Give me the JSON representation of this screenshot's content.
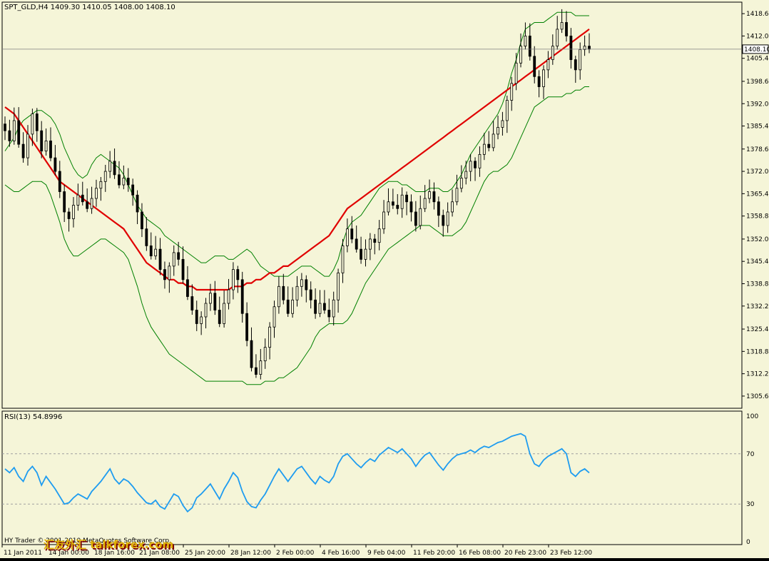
{
  "colors": {
    "background": "#f5f5d8",
    "frame": "#000000",
    "candle": "#000000",
    "ma": "#e00000",
    "bands": "#008000",
    "rsi": "#1e9cf0",
    "level_line": "#a0a0a0",
    "price_marker_bg": "#ffffff",
    "watermark_primary": "#e0b000",
    "watermark_shadow": "#7a0000"
  },
  "main_panel": {
    "header": "SPT_GLD,H4  1409.30 1410.05 1408.00 1408.10",
    "current_price_label": "1408.10"
  },
  "rsi_panel": {
    "header": "RSI(13) 54.8996"
  },
  "footer": {
    "copyright": "HY Trader © 2001-2010 MetaQuotes Software Corp.",
    "watermark": "汇友外汇 talkforex.com"
  },
  "chart_data": [
    {
      "type": "candlestick",
      "title": "SPT_GLD,H4",
      "ylim": [
        1302.0,
        1422.0
      ],
      "y_ticks": [
        "1418.60",
        "1412.00",
        "1405.40",
        "1398.60",
        "1392.00",
        "1385.40",
        "1378.60",
        "1372.00",
        "1365.40",
        "1358.80",
        "1352.00",
        "1345.40",
        "1338.80",
        "1332.20",
        "1325.40",
        "1318.80",
        "1312.20",
        "1305.60"
      ],
      "x_ticks": [
        "11 Jan 2011",
        "14 Jan 00:00",
        "18 Jan 16:00",
        "21 Jan 08:00",
        "25 Jan 20:00",
        "28 Jan 12:00",
        "2 Feb 00:00",
        "4 Feb 16:00",
        "9 Feb 04:00",
        "11 Feb 20:00",
        "16 Feb 08:00",
        "20 Feb 23:00",
        "23 Feb 12:00"
      ],
      "ohlc_last": {
        "open": 1409.3,
        "high": 1410.05,
        "low": 1408.0,
        "close": 1408.1
      },
      "close": [
        1384,
        1381,
        1387,
        1380,
        1376,
        1383,
        1389,
        1384,
        1378,
        1381,
        1376,
        1372,
        1366,
        1360,
        1358,
        1362,
        1365,
        1363,
        1361,
        1364,
        1367,
        1369,
        1372,
        1375,
        1371,
        1368,
        1370,
        1368,
        1365,
        1360,
        1355,
        1350,
        1347,
        1349,
        1343,
        1340,
        1344,
        1348,
        1346,
        1340,
        1335,
        1331,
        1327,
        1329,
        1333,
        1336,
        1331,
        1327,
        1333,
        1337,
        1343,
        1340,
        1330,
        1322,
        1314,
        1312,
        1316,
        1320,
        1326,
        1332,
        1338,
        1334,
        1330,
        1334,
        1338,
        1340,
        1337,
        1334,
        1330,
        1333,
        1331,
        1329,
        1334,
        1342,
        1350,
        1355,
        1352,
        1349,
        1346,
        1349,
        1352,
        1351,
        1355,
        1360,
        1363,
        1362,
        1361,
        1365,
        1363,
        1360,
        1356,
        1361,
        1364,
        1366,
        1363,
        1359,
        1356,
        1360,
        1363,
        1367,
        1370,
        1372,
        1375,
        1373,
        1377,
        1380,
        1379,
        1383,
        1385,
        1387,
        1393,
        1398,
        1404,
        1409,
        1412,
        1406,
        1400,
        1397,
        1402,
        1405,
        1409,
        1414,
        1416,
        1412,
        1405,
        1402,
        1408,
        1409,
        1408.1
      ],
      "bands_upper": [
        1378,
        1380,
        1382,
        1385,
        1387,
        1388,
        1389,
        1390,
        1390,
        1389,
        1388,
        1386,
        1383,
        1379,
        1376,
        1373,
        1371,
        1370,
        1371,
        1374,
        1376,
        1377,
        1376,
        1375,
        1374,
        1373,
        1371,
        1368,
        1365,
        1362,
        1360,
        1358,
        1357,
        1356,
        1355,
        1353,
        1352,
        1351,
        1350,
        1349,
        1348,
        1347,
        1346,
        1345,
        1345,
        1346,
        1347,
        1347,
        1347,
        1346,
        1346,
        1347,
        1348,
        1349,
        1348,
        1346,
        1344,
        1343,
        1342,
        1341,
        1341,
        1341,
        1341,
        1342,
        1343,
        1344,
        1344,
        1344,
        1343,
        1342,
        1341,
        1341,
        1343,
        1346,
        1351,
        1355,
        1357,
        1358,
        1359,
        1361,
        1363,
        1365,
        1367,
        1368,
        1369,
        1369,
        1369,
        1368,
        1368,
        1367,
        1366,
        1366,
        1366,
        1367,
        1367,
        1367,
        1366,
        1366,
        1367,
        1369,
        1371,
        1374,
        1377,
        1379,
        1381,
        1383,
        1385,
        1387,
        1389,
        1392,
        1396,
        1401,
        1405,
        1410,
        1414,
        1415,
        1416,
        1416,
        1416,
        1417,
        1418,
        1419,
        1419,
        1419,
        1419,
        1418,
        1418,
        1418,
        1418
      ],
      "bands_lower": [
        1368,
        1367,
        1366,
        1366,
        1367,
        1368,
        1369,
        1369,
        1369,
        1368,
        1365,
        1361,
        1357,
        1352,
        1349,
        1347,
        1347,
        1348,
        1349,
        1350,
        1351,
        1352,
        1352,
        1351,
        1350,
        1349,
        1348,
        1346,
        1342,
        1338,
        1333,
        1329,
        1326,
        1324,
        1322,
        1320,
        1318,
        1317,
        1316,
        1315,
        1314,
        1313,
        1312,
        1311,
        1310,
        1310,
        1310,
        1310,
        1310,
        1310,
        1310,
        1310,
        1310,
        1309,
        1309,
        1309,
        1309,
        1310,
        1310,
        1310,
        1311,
        1311,
        1312,
        1313,
        1314,
        1316,
        1318,
        1320,
        1323,
        1325,
        1326,
        1327,
        1327,
        1327,
        1327,
        1328,
        1330,
        1333,
        1336,
        1339,
        1341,
        1343,
        1345,
        1347,
        1349,
        1350,
        1351,
        1352,
        1353,
        1354,
        1355,
        1356,
        1356,
        1356,
        1355,
        1354,
        1353,
        1353,
        1353,
        1354,
        1355,
        1357,
        1360,
        1363,
        1366,
        1369,
        1371,
        1372,
        1372,
        1373,
        1374,
        1376,
        1379,
        1382,
        1385,
        1388,
        1391,
        1392,
        1393,
        1394,
        1394,
        1394,
        1394,
        1395,
        1395,
        1396,
        1396,
        1397,
        1397
      ],
      "ma": [
        1391,
        1390,
        1389,
        1387,
        1385,
        1383,
        1381,
        1379,
        1377,
        1375,
        1373,
        1371,
        1369,
        1368,
        1367,
        1366,
        1365,
        1364,
        1363,
        1362,
        1361,
        1360,
        1359,
        1358,
        1357,
        1356,
        1355,
        1353,
        1351,
        1349,
        1347,
        1345,
        1344,
        1343,
        1342,
        1341,
        1340,
        1340,
        1339,
        1339,
        1338,
        1338,
        1337,
        1337,
        1337,
        1337,
        1337,
        1337,
        1337,
        1337,
        1338,
        1338,
        1338,
        1339,
        1339,
        1340,
        1340,
        1341,
        1342,
        1342,
        1343,
        1344,
        1344,
        1345,
        1346,
        1347,
        1348,
        1349,
        1350,
        1351,
        1352,
        1353,
        1355,
        1357,
        1359,
        1361,
        1362,
        1363,
        1364,
        1365,
        1366,
        1367,
        1368,
        1369,
        1370,
        1371,
        1372,
        1373,
        1374,
        1375,
        1376,
        1377,
        1378,
        1379,
        1380,
        1381,
        1382,
        1383,
        1384,
        1385,
        1386,
        1387,
        1388,
        1389,
        1390,
        1391,
        1392,
        1393,
        1394,
        1395,
        1396,
        1397,
        1398,
        1399,
        1400,
        1401,
        1402,
        1403,
        1404,
        1405,
        1406,
        1407,
        1408,
        1409,
        1410,
        1411,
        1412,
        1413,
        1414
      ]
    },
    {
      "type": "line",
      "title": "RSI(13) 54.8996",
      "ylim": [
        0,
        100
      ],
      "y_ticks": [
        100,
        70,
        30,
        0
      ],
      "levels": [
        70,
        30
      ],
      "values": [
        58,
        55,
        59,
        52,
        48,
        56,
        60,
        55,
        45,
        52,
        47,
        42,
        36,
        30,
        31,
        35,
        38,
        36,
        34,
        40,
        44,
        48,
        53,
        58,
        50,
        46,
        50,
        48,
        44,
        39,
        35,
        31,
        30,
        33,
        28,
        26,
        32,
        38,
        36,
        29,
        24,
        27,
        35,
        38,
        42,
        46,
        40,
        34,
        42,
        48,
        55,
        51,
        40,
        32,
        28,
        27,
        33,
        38,
        45,
        52,
        58,
        53,
        48,
        53,
        58,
        60,
        55,
        50,
        46,
        52,
        49,
        47,
        52,
        62,
        68,
        70,
        66,
        62,
        59,
        63,
        66,
        64,
        69,
        72,
        75,
        73,
        71,
        74,
        70,
        66,
        60,
        65,
        69,
        71,
        66,
        61,
        57,
        62,
        66,
        69,
        70,
        71,
        73,
        71,
        74,
        76,
        75,
        77,
        79,
        80,
        82,
        84,
        85,
        86,
        84,
        70,
        62,
        60,
        65,
        68,
        70,
        72,
        74,
        70,
        55,
        52,
        56,
        58,
        54.9
      ]
    }
  ]
}
